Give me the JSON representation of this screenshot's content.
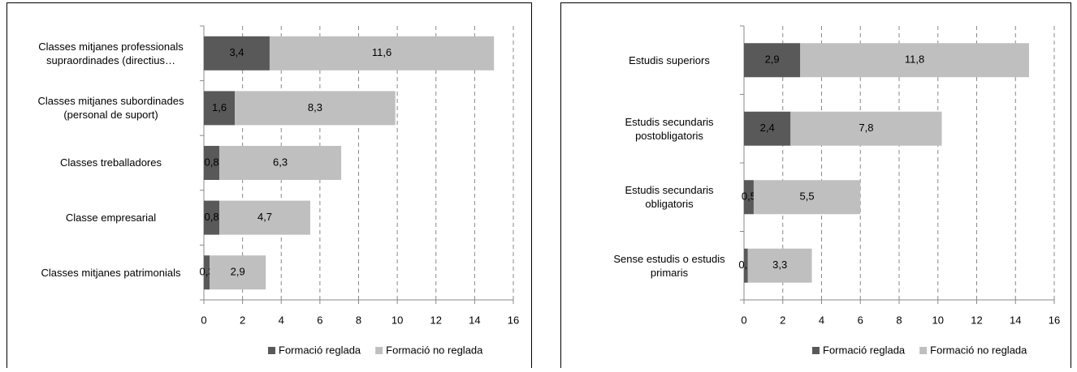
{
  "chart_data": [
    {
      "type": "bar",
      "orientation": "horizontal",
      "stacked": true,
      "grid": true,
      "categories": [
        "Classes mitjanes professionals supraordinades (directius…",
        "Classes mitjanes subordinades (personal de suport)",
        "Classes treballadores",
        "Classe empresarial",
        "Classes mitjanes patrimonials"
      ],
      "series": [
        {
          "name": "Formació reglada",
          "color": "#595959",
          "values": [
            3.4,
            1.6,
            0.8,
            0.8,
            0.3
          ],
          "value_labels": [
            "3,4",
            "1,6",
            "0,8",
            "0,8",
            "0,3"
          ]
        },
        {
          "name": "Formació no reglada",
          "color": "#bfbfbf",
          "values": [
            11.6,
            8.3,
            6.3,
            4.7,
            2.9
          ],
          "value_labels": [
            "11,6",
            "8,3",
            "6,3",
            "4,7",
            "2,9"
          ]
        }
      ],
      "xlim": [
        0,
        16
      ],
      "xticks": [
        0,
        2,
        4,
        6,
        8,
        10,
        12,
        14,
        16
      ],
      "legend": "bottom"
    },
    {
      "type": "bar",
      "orientation": "horizontal",
      "stacked": true,
      "grid": true,
      "categories": [
        "Estudis superiors",
        "Estudis secundaris postobligatoris",
        "Estudis secundaris obligatoris",
        "Sense estudis o estudis primaris"
      ],
      "series": [
        {
          "name": "Formació reglada",
          "color": "#595959",
          "values": [
            2.9,
            2.4,
            0.5,
            0.2
          ],
          "value_labels": [
            "2,9",
            "2,4",
            "0,5",
            "0,2"
          ]
        },
        {
          "name": "Formació no reglada",
          "color": "#bfbfbf",
          "values": [
            11.8,
            7.8,
            5.5,
            3.3
          ],
          "value_labels": [
            "11,8",
            "7,8",
            "5,5",
            "3,3"
          ]
        }
      ],
      "xlim": [
        0,
        16
      ],
      "xticks": [
        0,
        2,
        4,
        6,
        8,
        10,
        12,
        14,
        16
      ],
      "legend": "bottom"
    }
  ]
}
